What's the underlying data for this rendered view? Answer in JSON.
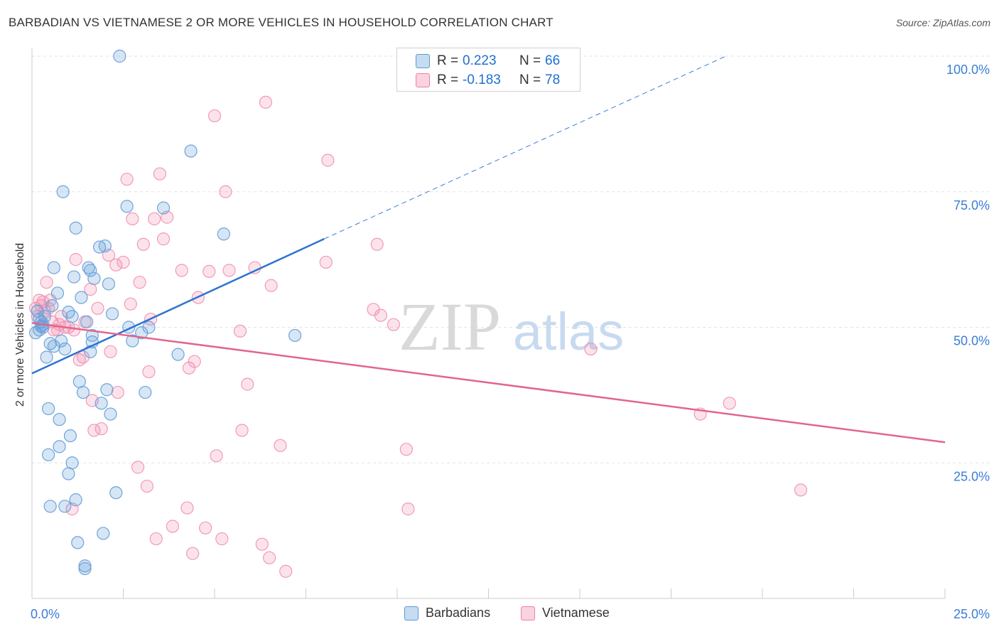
{
  "title": "BARBADIAN VS VIETNAMESE 2 OR MORE VEHICLES IN HOUSEHOLD CORRELATION CHART",
  "source": "Source: ZipAtlas.com",
  "watermark": {
    "zip": "ZIP",
    "atlas": "atlas"
  },
  "legend_top": [
    {
      "r_label": "R =",
      "r_value": "0.223",
      "n_label": "N =",
      "n_value": "66",
      "color": "#5b9bd5"
    },
    {
      "r_label": "R =",
      "r_value": "-0.183",
      "n_label": "N =",
      "n_value": "78",
      "color": "#f07fa6"
    }
  ],
  "legend_bottom": [
    {
      "label": "Barbadians",
      "color": "#5b9bd5"
    },
    {
      "label": "Vietnamese",
      "color": "#f07fa6"
    }
  ],
  "chart_data": {
    "type": "scatter",
    "title": "BARBADIAN VS VIETNAMESE 2 OR MORE VEHICLES IN HOUSEHOLD CORRELATION CHART",
    "xlabel": "",
    "ylabel": "2 or more Vehicles in Household",
    "xlim": [
      0,
      25
    ],
    "ylim": [
      0,
      100
    ],
    "x_tick_labels": [
      "0.0%",
      "25.0%"
    ],
    "y_ticks": [
      25,
      50,
      75,
      100
    ],
    "y_tick_labels": [
      "25.0%",
      "50.0%",
      "75.0%",
      "100.0%"
    ],
    "grid": true,
    "legend_position": "top-center",
    "series": [
      {
        "name": "Barbadians",
        "color": "#5b9bd5",
        "trend": {
          "x": [
            0,
            8
          ],
          "y": [
            41.5,
            66.3
          ],
          "dashed_to": [
            19,
            100
          ]
        },
        "points": [
          [
            0.1,
            49
          ],
          [
            0.15,
            53
          ],
          [
            0.2,
            51.5
          ],
          [
            0.25,
            50.2
          ],
          [
            0.3,
            50
          ],
          [
            0.35,
            52
          ],
          [
            0.4,
            44.5
          ],
          [
            0.45,
            35
          ],
          [
            0.45,
            26.5
          ],
          [
            0.5,
            47
          ],
          [
            0.5,
            17
          ],
          [
            0.6,
            61
          ],
          [
            0.6,
            46.5
          ],
          [
            0.7,
            56.3
          ],
          [
            0.75,
            33
          ],
          [
            0.75,
            28
          ],
          [
            0.8,
            47.5
          ],
          [
            0.85,
            75
          ],
          [
            0.9,
            17
          ],
          [
            0.9,
            46
          ],
          [
            1.0,
            52.8
          ],
          [
            1.0,
            23
          ],
          [
            1.05,
            30
          ],
          [
            1.1,
            25
          ],
          [
            1.15,
            59.3
          ],
          [
            1.2,
            68.3
          ],
          [
            1.2,
            18.2
          ],
          [
            1.25,
            10.3
          ],
          [
            1.3,
            40
          ],
          [
            1.35,
            55.5
          ],
          [
            1.4,
            38
          ],
          [
            1.45,
            6
          ],
          [
            1.45,
            5.5
          ],
          [
            1.5,
            51
          ],
          [
            1.55,
            61
          ],
          [
            1.6,
            45.5
          ],
          [
            1.6,
            60.5
          ],
          [
            1.65,
            47.3
          ],
          [
            1.65,
            48.5
          ],
          [
            1.7,
            59
          ],
          [
            1.85,
            64.8
          ],
          [
            1.9,
            36
          ],
          [
            1.95,
            12
          ],
          [
            2.0,
            65
          ],
          [
            2.05,
            38.5
          ],
          [
            2.1,
            58
          ],
          [
            2.15,
            34
          ],
          [
            2.2,
            52.5
          ],
          [
            2.3,
            19.5
          ],
          [
            2.4,
            100
          ],
          [
            2.6,
            72.3
          ],
          [
            2.65,
            50
          ],
          [
            2.75,
            47.5
          ],
          [
            3.0,
            49
          ],
          [
            3.1,
            38
          ],
          [
            3.2,
            50
          ],
          [
            3.6,
            72
          ],
          [
            4.0,
            45
          ],
          [
            4.35,
            82.5
          ],
          [
            5.25,
            67.2
          ],
          [
            7.2,
            48.5
          ],
          [
            0.25,
            51
          ],
          [
            0.55,
            54
          ],
          [
            1.1,
            52
          ],
          [
            0.3,
            50.5
          ],
          [
            0.2,
            49.5
          ]
        ]
      },
      {
        "name": "Vietnamese",
        "color": "#f07fa6",
        "trend": {
          "x": [
            0,
            25
          ],
          "y": [
            50.8,
            28.8
          ]
        },
        "points": [
          [
            0.1,
            53.5
          ],
          [
            0.15,
            52
          ],
          [
            0.2,
            55
          ],
          [
            0.25,
            54
          ],
          [
            0.3,
            54.7
          ],
          [
            0.35,
            53
          ],
          [
            0.4,
            58.3
          ],
          [
            0.45,
            53.5
          ],
          [
            0.5,
            55
          ],
          [
            0.55,
            51
          ],
          [
            0.6,
            49.5
          ],
          [
            0.7,
            49.5
          ],
          [
            0.75,
            50.5
          ],
          [
            0.8,
            52
          ],
          [
            0.9,
            50
          ],
          [
            1.0,
            50
          ],
          [
            1.1,
            16.5
          ],
          [
            1.15,
            49.5
          ],
          [
            1.2,
            62.5
          ],
          [
            1.3,
            44
          ],
          [
            1.4,
            44.5
          ],
          [
            1.45,
            51
          ],
          [
            1.6,
            57
          ],
          [
            1.65,
            36.5
          ],
          [
            1.7,
            31
          ],
          [
            1.8,
            53.5
          ],
          [
            1.9,
            31.3
          ],
          [
            2.1,
            63.3
          ],
          [
            2.15,
            45.5
          ],
          [
            2.3,
            61.5
          ],
          [
            2.35,
            38
          ],
          [
            2.5,
            62
          ],
          [
            2.6,
            77.3
          ],
          [
            2.7,
            54.3
          ],
          [
            2.75,
            70
          ],
          [
            2.9,
            24.2
          ],
          [
            2.95,
            58.3
          ],
          [
            3.05,
            65.3
          ],
          [
            3.15,
            20.7
          ],
          [
            3.2,
            41.8
          ],
          [
            3.25,
            51.5
          ],
          [
            3.35,
            70
          ],
          [
            3.4,
            11
          ],
          [
            3.5,
            78.3
          ],
          [
            3.6,
            66.3
          ],
          [
            3.7,
            70.3
          ],
          [
            3.85,
            13.3
          ],
          [
            4.1,
            60.5
          ],
          [
            4.25,
            16.7
          ],
          [
            4.3,
            42.5
          ],
          [
            4.4,
            8.3
          ],
          [
            4.45,
            43.7
          ],
          [
            4.55,
            55.5
          ],
          [
            4.75,
            13
          ],
          [
            4.85,
            60.3
          ],
          [
            5.0,
            89
          ],
          [
            5.05,
            26.3
          ],
          [
            5.2,
            11
          ],
          [
            5.3,
            75
          ],
          [
            5.4,
            60.5
          ],
          [
            5.7,
            49.3
          ],
          [
            5.75,
            31
          ],
          [
            5.9,
            39.5
          ],
          [
            6.1,
            61
          ],
          [
            6.3,
            10
          ],
          [
            6.4,
            91.5
          ],
          [
            6.5,
            7.5
          ],
          [
            6.55,
            57.7
          ],
          [
            6.8,
            28.2
          ],
          [
            6.95,
            5
          ],
          [
            8.05,
            62
          ],
          [
            8.1,
            80.8
          ],
          [
            9.35,
            53.3
          ],
          [
            9.55,
            52.2
          ],
          [
            9.45,
            65.3
          ],
          [
            9.9,
            50.5
          ],
          [
            10.25,
            27.5
          ],
          [
            10.3,
            16.5
          ]
        ],
        "extra_points": [
          [
            15.3,
            46
          ],
          [
            18.3,
            34
          ],
          [
            19.1,
            36
          ],
          [
            21.05,
            20
          ]
        ]
      }
    ]
  }
}
